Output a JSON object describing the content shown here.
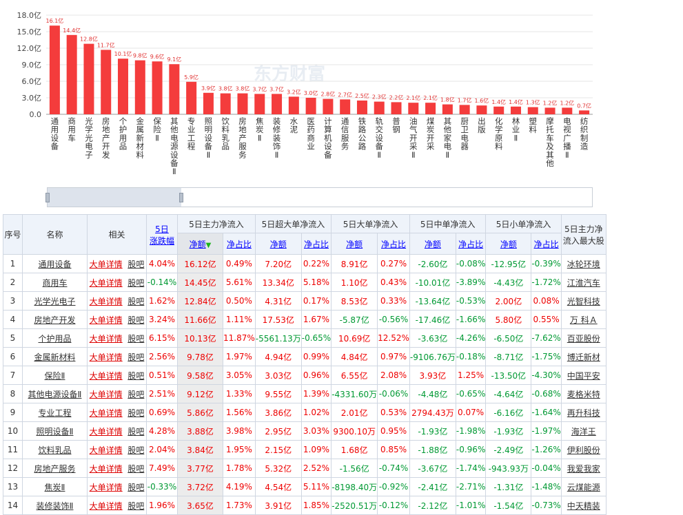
{
  "chart_data": {
    "type": "bar",
    "color": "#f43c3c",
    "watermark": "东方财富",
    "yticks": [
      "0.0",
      "3.0亿",
      "6.0亿",
      "9.0亿",
      "12.0亿",
      "15.0亿",
      "18.0亿"
    ],
    "ylim": [
      0,
      18
    ],
    "categories": [
      "通用设备",
      "商用车",
      "光学光电子",
      "房地产开发",
      "个护用品",
      "金属新材料",
      "保险Ⅱ",
      "其他电源设备Ⅱ",
      "专业工程",
      "照明设备Ⅱ",
      "饮料乳品",
      "房地产服务",
      "焦炭Ⅱ",
      "装修装饰Ⅱ",
      "水泥",
      "医药商业",
      "计算机设备",
      "通信服务",
      "铁路公路",
      "轨交设备Ⅱ",
      "普钢",
      "油气开采Ⅱ",
      "煤炭开采",
      "其他家电Ⅱ",
      "厨卫电器",
      "出版",
      "化学原料",
      "林业Ⅱ",
      "塑料",
      "摩托车及其他",
      "电视广播Ⅱ",
      "纺织制造"
    ],
    "values": [
      16.1,
      14.4,
      12.8,
      11.7,
      10.1,
      9.8,
      9.6,
      9.1,
      5.9,
      3.9,
      3.8,
      3.8,
      3.7,
      3.7,
      3.2,
      3.0,
      2.8,
      2.7,
      2.5,
      2.3,
      2.2,
      2.1,
      2.1,
      1.8,
      1.7,
      1.6,
      1.4,
      1.4,
      1.3,
      1.2,
      1.2,
      0.7
    ],
    "labels": [
      "16.1亿",
      "14.4亿",
      "12.8亿",
      "11.7亿",
      "10.1亿",
      "9.8亿",
      "9.6亿",
      "9.1亿",
      "5.9亿",
      "3.9亿",
      "3.8亿",
      "3.8亿",
      "3.7亿",
      "3.7亿",
      "3.2亿",
      "3.0亿",
      "2.8亿",
      "2.7亿",
      "2.5亿",
      "2.3亿",
      "2.2亿",
      "2.1亿",
      "2.1亿",
      "1.8亿",
      "1.7亿",
      "1.6亿",
      "1.4亿",
      "1.4亿",
      "1.3亿",
      "1.2亿",
      "1.2亿",
      "0.7亿"
    ]
  },
  "table": {
    "headers": {
      "seq": "序号",
      "name": "名称",
      "related": "相关",
      "change_l1": "5日",
      "change_l2": "涨跌幅",
      "main": "5日主力净流入",
      "super": "5日超大单净流入",
      "big": "5日大单净流入",
      "mid": "5日中单净流入",
      "small": "5日小单净流入",
      "maxstock_l1": "5日主力净",
      "maxstock_l2": "流入最大股",
      "net": "净额",
      "ratio": "净占比",
      "sort_arrow": "▼"
    },
    "link_detail": "大单详情",
    "link_guba": "股吧",
    "rows": [
      {
        "n": "1",
        "name": "通用设备",
        "chg": "4.04%",
        "m": "16.12亿",
        "mr": "0.49%",
        "s": "7.20亿",
        "sr": "0.22%",
        "b": "8.91亿",
        "br": "0.27%",
        "d": "-2.60亿",
        "dr": "-0.08%",
        "x": "-12.95亿",
        "xr": "-0.39%",
        "top": "冰轮环境"
      },
      {
        "n": "2",
        "name": "商用车",
        "chg": "-0.14%",
        "m": "14.45亿",
        "mr": "5.61%",
        "s": "13.34亿",
        "sr": "5.18%",
        "b": "1.10亿",
        "br": "0.43%",
        "d": "-10.01亿",
        "dr": "-3.89%",
        "x": "-4.43亿",
        "xr": "-1.72%",
        "top": "江淮汽车"
      },
      {
        "n": "3",
        "name": "光学光电子",
        "chg": "1.62%",
        "m": "12.84亿",
        "mr": "0.50%",
        "s": "4.31亿",
        "sr": "0.17%",
        "b": "8.53亿",
        "br": "0.33%",
        "d": "-13.64亿",
        "dr": "-0.53%",
        "x": "2.00亿",
        "xr": "0.08%",
        "top": "光智科技"
      },
      {
        "n": "4",
        "name": "房地产开发",
        "chg": "3.24%",
        "m": "11.66亿",
        "mr": "1.11%",
        "s": "17.53亿",
        "sr": "1.67%",
        "b": "-5.87亿",
        "br": "-0.56%",
        "d": "-17.46亿",
        "dr": "-1.66%",
        "x": "5.80亿",
        "xr": "0.55%",
        "top": "万 科Ａ"
      },
      {
        "n": "5",
        "name": "个护用品",
        "chg": "6.15%",
        "m": "10.13亿",
        "mr": "11.87%",
        "s": "-5561.13万",
        "sr": "-0.65%",
        "b": "10.69亿",
        "br": "12.52%",
        "d": "-3.63亿",
        "dr": "-4.26%",
        "x": "-6.50亿",
        "xr": "-7.62%",
        "top": "百亚股份"
      },
      {
        "n": "6",
        "name": "金属新材料",
        "chg": "2.56%",
        "m": "9.78亿",
        "mr": "1.97%",
        "s": "4.94亿",
        "sr": "0.99%",
        "b": "4.84亿",
        "br": "0.97%",
        "d": "-9106.76万",
        "dr": "-0.18%",
        "x": "-8.71亿",
        "xr": "-1.75%",
        "top": "博迁新材"
      },
      {
        "n": "7",
        "name": "保险Ⅱ",
        "chg": "0.51%",
        "m": "9.58亿",
        "mr": "3.05%",
        "s": "3.03亿",
        "sr": "0.96%",
        "b": "6.55亿",
        "br": "2.08%",
        "d": "3.93亿",
        "dr": "1.25%",
        "x": "-13.50亿",
        "xr": "-4.30%",
        "top": "中国平安"
      },
      {
        "n": "8",
        "name": "其他电源设备Ⅱ",
        "chg": "2.51%",
        "m": "9.12亿",
        "mr": "1.33%",
        "s": "9.55亿",
        "sr": "1.39%",
        "b": "-4331.60万",
        "br": "-0.06%",
        "d": "-4.48亿",
        "dr": "-0.65%",
        "x": "-4.64亿",
        "xr": "-0.68%",
        "top": "麦格米特"
      },
      {
        "n": "9",
        "name": "专业工程",
        "chg": "0.69%",
        "m": "5.86亿",
        "mr": "1.56%",
        "s": "3.86亿",
        "sr": "1.02%",
        "b": "2.01亿",
        "br": "0.53%",
        "d": "2794.43万",
        "dr": "0.07%",
        "x": "-6.16亿",
        "xr": "-1.64%",
        "top": "再升科技"
      },
      {
        "n": "10",
        "name": "照明设备Ⅱ",
        "chg": "4.28%",
        "m": "3.88亿",
        "mr": "3.98%",
        "s": "2.95亿",
        "sr": "3.03%",
        "b": "9300.10万",
        "br": "0.95%",
        "d": "-1.93亿",
        "dr": "-1.98%",
        "x": "-1.93亿",
        "xr": "-1.97%",
        "top": "海洋王"
      },
      {
        "n": "11",
        "name": "饮料乳品",
        "chg": "2.04%",
        "m": "3.84亿",
        "mr": "1.95%",
        "s": "2.15亿",
        "sr": "1.09%",
        "b": "1.68亿",
        "br": "0.85%",
        "d": "-1.88亿",
        "dr": "-0.96%",
        "x": "-2.49亿",
        "xr": "-1.26%",
        "top": "伊利股份"
      },
      {
        "n": "12",
        "name": "房地产服务",
        "chg": "7.49%",
        "m": "3.77亿",
        "mr": "1.78%",
        "s": "5.32亿",
        "sr": "2.52%",
        "b": "-1.56亿",
        "br": "-0.74%",
        "d": "-3.67亿",
        "dr": "-1.74%",
        "x": "-943.93万",
        "xr": "-0.04%",
        "top": "我爱我家"
      },
      {
        "n": "13",
        "name": "焦炭Ⅱ",
        "chg": "-0.33%",
        "m": "3.72亿",
        "mr": "4.19%",
        "s": "4.54亿",
        "sr": "5.11%",
        "b": "-8198.40万",
        "br": "-0.92%",
        "d": "-2.41亿",
        "dr": "-2.71%",
        "x": "-1.31亿",
        "xr": "-1.48%",
        "top": "云煤能源"
      },
      {
        "n": "14",
        "name": "装修装饰Ⅱ",
        "chg": "1.96%",
        "m": "3.65亿",
        "mr": "1.73%",
        "s": "3.91亿",
        "sr": "1.85%",
        "b": "-2520.51万",
        "br": "-0.12%",
        "d": "-2.12亿",
        "dr": "-1.01%",
        "x": "-1.54亿",
        "xr": "-0.73%",
        "top": "中天精装"
      }
    ]
  }
}
